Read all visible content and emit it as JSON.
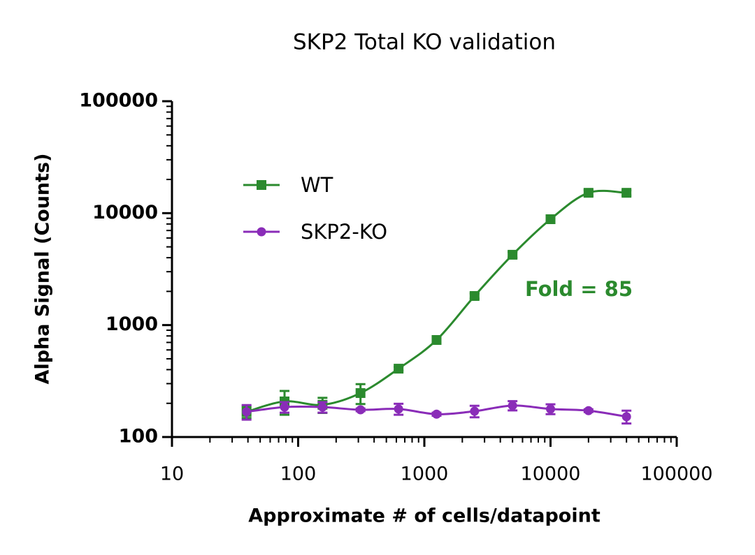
{
  "chart_data": {
    "type": "scatter",
    "title": "SKP2 Total KO validation",
    "x_label": "Approximate # of cells/datapoint",
    "y_label": "Alpha Signal (Counts)",
    "annotation": "Fold = 85",
    "x": [
      39,
      78,
      156,
      312,
      625,
      1250,
      2500,
      5000,
      10000,
      20000,
      40000
    ],
    "series": [
      {
        "name": "WT",
        "color": "#2b8a2e",
        "marker": "square",
        "values": [
          168,
          208,
          194,
          247,
          408,
          736,
          1820,
          4250,
          8830,
          15200,
          15200
        ],
        "errors": [
          20,
          50,
          30,
          50,
          15,
          40,
          100,
          250,
          500,
          900,
          800
        ]
      },
      {
        "name": "SKP2-KO",
        "color": "#8a2cb8",
        "marker": "circle",
        "values": [
          168,
          185,
          185,
          175,
          178,
          160,
          170,
          191,
          178,
          172,
          152
        ],
        "errors": [
          25,
          20,
          20,
          5,
          20,
          5,
          20,
          18,
          18,
          5,
          20
        ]
      }
    ],
    "xlim": [
      10,
      100000
    ],
    "xticks": [
      10,
      100,
      1000,
      10000,
      100000
    ],
    "xscale": "log",
    "ylim": [
      100,
      100000
    ],
    "yticks": [
      100,
      1000,
      10000,
      100000
    ],
    "yscale": "log",
    "legend": "upper left"
  }
}
